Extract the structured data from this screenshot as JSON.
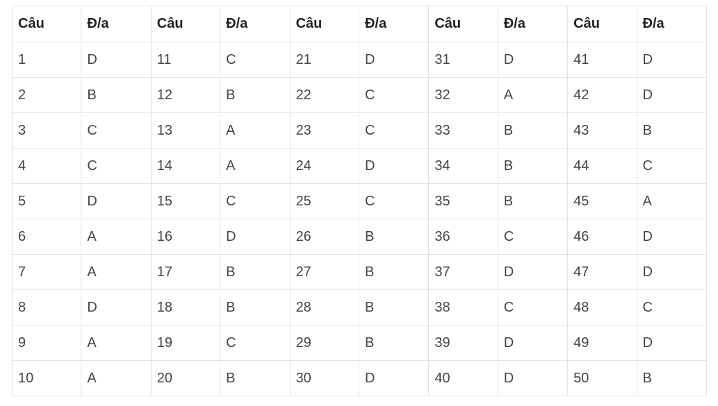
{
  "table": {
    "headers": [
      "Câu",
      "Đ/a",
      "Câu",
      "Đ/a",
      "Câu",
      "Đ/a",
      "Câu",
      "Đ/a",
      "Câu",
      "Đ/a"
    ],
    "rows": [
      [
        "1",
        "D",
        "11",
        "C",
        "21",
        "D",
        "31",
        "D",
        "41",
        "D"
      ],
      [
        "2",
        "B",
        "12",
        "B",
        "22",
        "C",
        "32",
        "A",
        "42",
        "D"
      ],
      [
        "3",
        "C",
        "13",
        "A",
        "23",
        "C",
        "33",
        "B",
        "43",
        "B"
      ],
      [
        "4",
        "C",
        "14",
        "A",
        "24",
        "D",
        "34",
        "B",
        "44",
        "C"
      ],
      [
        "5",
        "D",
        "15",
        "C",
        "25",
        "C",
        "35",
        "B",
        "45",
        "A"
      ],
      [
        "6",
        "A",
        "16",
        "D",
        "26",
        "B",
        "36",
        "C",
        "46",
        "D"
      ],
      [
        "7",
        "A",
        "17",
        "B",
        "27",
        "B",
        "37",
        "D",
        "47",
        "D"
      ],
      [
        "8",
        "D",
        "18",
        "B",
        "28",
        "B",
        "38",
        "C",
        "48",
        "C"
      ],
      [
        "9",
        "A",
        "19",
        "C",
        "29",
        "B",
        "39",
        "D",
        "49",
        "D"
      ],
      [
        "10",
        "A",
        "20",
        "B",
        "30",
        "D",
        "40",
        "D",
        "50",
        "B"
      ]
    ]
  },
  "colors": {
    "border": "#e3e3e3",
    "header_text": "#222222",
    "cell_text": "#444444",
    "background": "#ffffff"
  }
}
